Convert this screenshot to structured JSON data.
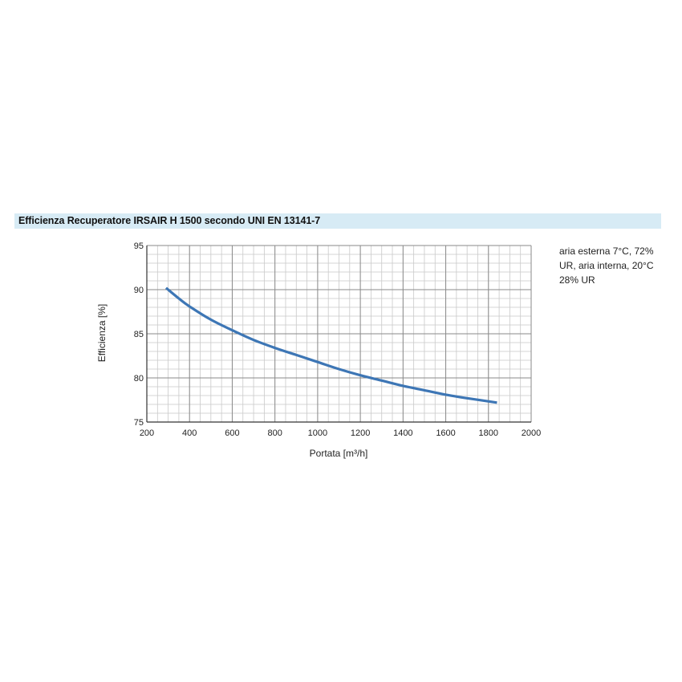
{
  "chart_data": {
    "type": "line",
    "title": "Efficienza Recuperatore IRSAIR H 1500 secondo UNI EN 13141-7",
    "xlabel": "Portata [m³/h]",
    "ylabel": "Efficienza [%]",
    "xlim": [
      200,
      2000
    ],
    "ylim": [
      75,
      95
    ],
    "x_ticks": [
      200,
      400,
      600,
      800,
      1000,
      1200,
      1400,
      1600,
      1800,
      2000
    ],
    "y_ticks": [
      75,
      80,
      85,
      90,
      95
    ],
    "x_tick_labels": [
      "200",
      "400",
      "600",
      "800",
      "1000",
      "1200",
      "1400",
      "1600",
      "1800",
      "2000"
    ],
    "y_tick_labels": [
      "75",
      "80",
      "85",
      "90",
      "95"
    ],
    "grid": true,
    "series_color": "#3d76b5",
    "series": [
      {
        "x": [
          290,
          350,
          400,
          500,
          600,
          700,
          800,
          900,
          1000,
          1100,
          1200,
          1300,
          1400,
          1500,
          1600,
          1700,
          1840
        ],
        "y": [
          90.2,
          89.0,
          88.1,
          86.6,
          85.4,
          84.3,
          83.4,
          82.6,
          81.8,
          81.0,
          80.3,
          79.7,
          79.1,
          78.6,
          78.1,
          77.7,
          77.2
        ]
      }
    ],
    "annotation": "aria esterna 7°C, 72% UR, aria interna, 20°C 28% UR"
  }
}
